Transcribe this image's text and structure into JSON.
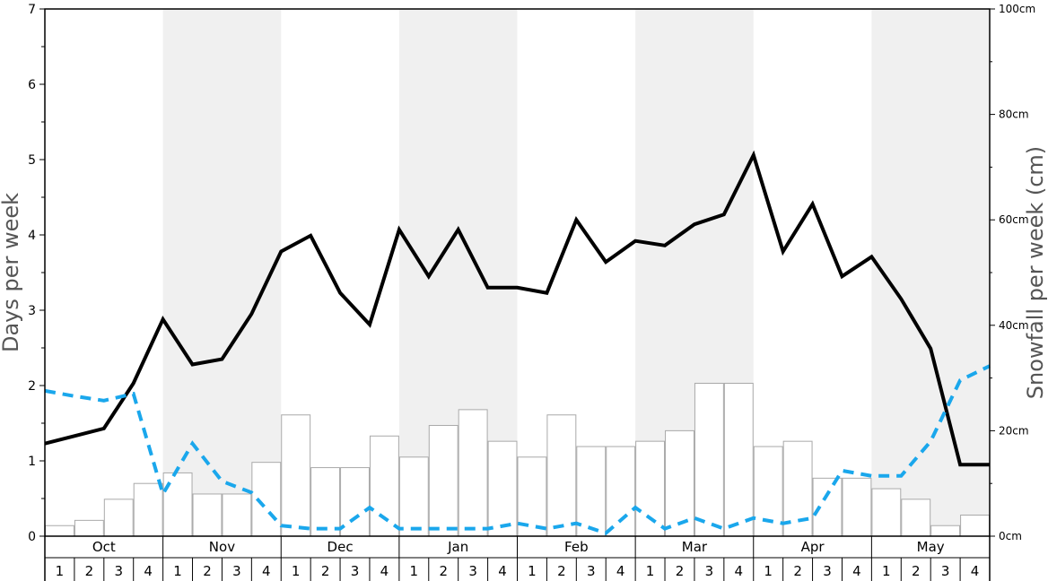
{
  "chart_data": {
    "type": "bar+line",
    "ylabel_left": "Days per week",
    "ylabel_right": "Snowfall per week (cm)",
    "ylim_left": [
      0,
      7
    ],
    "ylim_right": [
      0,
      100
    ],
    "left_ticks": [
      "0",
      "1",
      "2",
      "3",
      "4",
      "5",
      "6",
      "7"
    ],
    "right_ticks": [
      "0cm",
      "20cm",
      "40cm",
      "60cm",
      "80cm",
      "100cm"
    ],
    "months": [
      "Oct",
      "Nov",
      "Dec",
      "Jan",
      "Feb",
      "Mar",
      "Apr",
      "May"
    ],
    "weeks": [
      "1",
      "2",
      "3",
      "4"
    ],
    "series": [
      {
        "kind": "bar",
        "axis": "left",
        "values": [
          0.14,
          0.21,
          0.49,
          0.7,
          0.84,
          0.56,
          0.56,
          0.98,
          1.61,
          0.91,
          0.91,
          1.33,
          1.05,
          1.47,
          1.68,
          1.26,
          1.05,
          1.61,
          1.19,
          1.19,
          1.26,
          1.4,
          2.03,
          2.03,
          1.19,
          1.26,
          0.77,
          0.77,
          0.63,
          0.49,
          0.14,
          0.28
        ]
      },
      {
        "kind": "line",
        "style": "solid",
        "color": "#000000",
        "axis": "left",
        "values": [
          1.23,
          1.33,
          1.43,
          2.03,
          2.88,
          2.28,
          2.35,
          2.95,
          3.78,
          3.99,
          3.23,
          2.81,
          4.07,
          3.45,
          4.07,
          3.3,
          3.3,
          3.23,
          4.2,
          3.64,
          3.92,
          3.86,
          4.14,
          4.27,
          5.06,
          3.78,
          4.41,
          3.45,
          3.71,
          3.15,
          2.49,
          0.95,
          0.95
        ]
      },
      {
        "kind": "line",
        "style": "dashed",
        "color": "#1aa7ec",
        "axis": "left",
        "values": [
          1.93,
          1.86,
          1.8,
          1.89,
          0.56,
          1.23,
          0.73,
          0.58,
          0.14,
          0.1,
          0.1,
          0.38,
          0.1,
          0.1,
          0.1,
          0.1,
          0.17,
          0.1,
          0.17,
          0.04,
          0.38,
          0.1,
          0.24,
          0.1,
          0.24,
          0.17,
          0.24,
          0.87,
          0.8,
          0.8,
          1.26,
          2.07,
          2.26
        ]
      }
    ],
    "shaded_months": [
      "Nov",
      "Jan",
      "Mar",
      "May"
    ],
    "grid": false
  }
}
